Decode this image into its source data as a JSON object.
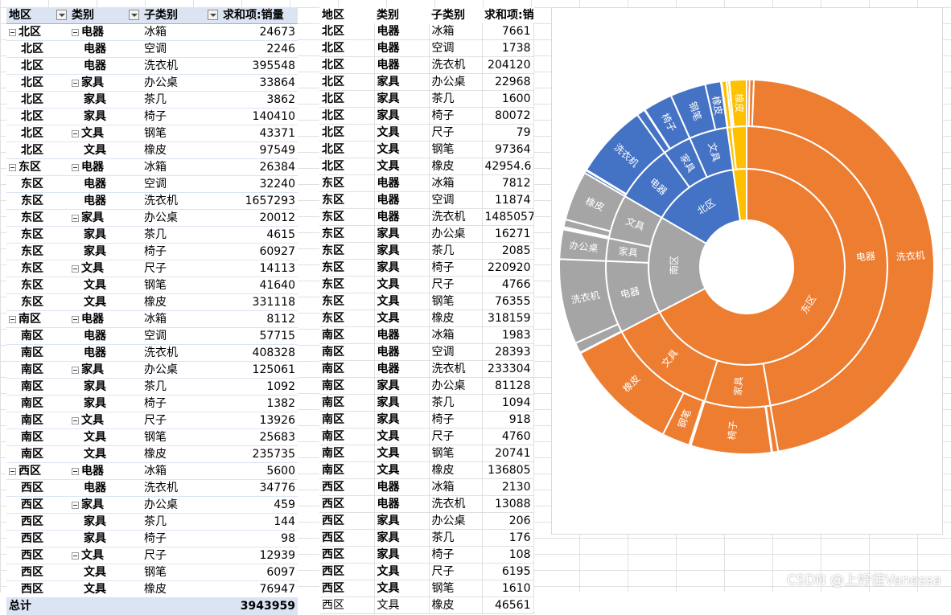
{
  "pivot": {
    "headers": [
      "地区",
      "类别",
      "子类别",
      "求和项:销量"
    ],
    "rows": [
      [
        "北区",
        "电器",
        "冰箱",
        "24673",
        1,
        1
      ],
      [
        "北区",
        "电器",
        "空调",
        "2246",
        0,
        0
      ],
      [
        "北区",
        "电器",
        "洗衣机",
        "395548",
        0,
        0
      ],
      [
        "北区",
        "家具",
        "办公桌",
        "33864",
        0,
        1
      ],
      [
        "北区",
        "家具",
        "茶几",
        "3862",
        0,
        0
      ],
      [
        "北区",
        "家具",
        "椅子",
        "140410",
        0,
        0
      ],
      [
        "北区",
        "文具",
        "钢笔",
        "43371",
        0,
        1
      ],
      [
        "北区",
        "文具",
        "橡皮",
        "97549",
        0,
        0
      ],
      [
        "东区",
        "电器",
        "冰箱",
        "26384",
        1,
        1
      ],
      [
        "东区",
        "电器",
        "空调",
        "32240",
        0,
        0
      ],
      [
        "东区",
        "电器",
        "洗衣机",
        "1657293",
        0,
        0
      ],
      [
        "东区",
        "家具",
        "办公桌",
        "20012",
        0,
        1
      ],
      [
        "东区",
        "家具",
        "茶几",
        "4615",
        0,
        0
      ],
      [
        "东区",
        "家具",
        "椅子",
        "60927",
        0,
        0
      ],
      [
        "东区",
        "文具",
        "尺子",
        "14113",
        0,
        1
      ],
      [
        "东区",
        "文具",
        "钢笔",
        "41640",
        0,
        0
      ],
      [
        "东区",
        "文具",
        "橡皮",
        "331118",
        0,
        0
      ],
      [
        "南区",
        "电器",
        "冰箱",
        "8112",
        1,
        1
      ],
      [
        "南区",
        "电器",
        "空调",
        "57715",
        0,
        0
      ],
      [
        "南区",
        "电器",
        "洗衣机",
        "408328",
        0,
        0
      ],
      [
        "南区",
        "家具",
        "办公桌",
        "125061",
        0,
        1
      ],
      [
        "南区",
        "家具",
        "茶几",
        "1092",
        0,
        0
      ],
      [
        "南区",
        "家具",
        "椅子",
        "1382",
        0,
        0
      ],
      [
        "南区",
        "文具",
        "尺子",
        "13926",
        0,
        1
      ],
      [
        "南区",
        "文具",
        "钢笔",
        "25683",
        0,
        0
      ],
      [
        "南区",
        "文具",
        "橡皮",
        "235735",
        0,
        0
      ],
      [
        "西区",
        "电器",
        "冰箱",
        "5600",
        1,
        1
      ],
      [
        "西区",
        "电器",
        "洗衣机",
        "34776",
        0,
        0
      ],
      [
        "西区",
        "家具",
        "办公桌",
        "459",
        0,
        1
      ],
      [
        "西区",
        "家具",
        "茶几",
        "144",
        0,
        0
      ],
      [
        "西区",
        "家具",
        "椅子",
        "98",
        0,
        0
      ],
      [
        "西区",
        "文具",
        "尺子",
        "12939",
        0,
        1
      ],
      [
        "西区",
        "文具",
        "钢笔",
        "6097",
        0,
        0
      ],
      [
        "西区",
        "文具",
        "橡皮",
        "76947",
        0,
        0
      ]
    ],
    "total_label": "总计",
    "total_value": "3943959"
  },
  "flat": {
    "headers": [
      "地区",
      "类别",
      "子类别",
      "求和项:销量"
    ],
    "rows": [
      [
        "北区",
        "电器",
        "冰箱",
        "7661"
      ],
      [
        "北区",
        "电器",
        "空调",
        "1738"
      ],
      [
        "北区",
        "电器",
        "洗衣机",
        "204120"
      ],
      [
        "北区",
        "家具",
        "办公桌",
        "22968"
      ],
      [
        "北区",
        "家具",
        "茶几",
        "1600"
      ],
      [
        "北区",
        "家具",
        "椅子",
        "80072"
      ],
      [
        "北区",
        "文具",
        "尺子",
        "79"
      ],
      [
        "北区",
        "文具",
        "钢笔",
        "97364"
      ],
      [
        "北区",
        "文具",
        "橡皮",
        "42954.6"
      ],
      [
        "东区",
        "电器",
        "冰箱",
        "7812"
      ],
      [
        "东区",
        "电器",
        "空调",
        "11874"
      ],
      [
        "东区",
        "电器",
        "洗衣机",
        "1485057"
      ],
      [
        "东区",
        "家具",
        "办公桌",
        "16271"
      ],
      [
        "东区",
        "家具",
        "茶几",
        "2085"
      ],
      [
        "东区",
        "家具",
        "椅子",
        "220920"
      ],
      [
        "东区",
        "文具",
        "尺子",
        "4766"
      ],
      [
        "东区",
        "文具",
        "钢笔",
        "76355"
      ],
      [
        "东区",
        "文具",
        "橡皮",
        "318159"
      ],
      [
        "南区",
        "电器",
        "冰箱",
        "1983"
      ],
      [
        "南区",
        "电器",
        "空调",
        "28393"
      ],
      [
        "南区",
        "电器",
        "洗衣机",
        "233304"
      ],
      [
        "南区",
        "家具",
        "办公桌",
        "81128"
      ],
      [
        "南区",
        "家具",
        "茶几",
        "1094"
      ],
      [
        "南区",
        "家具",
        "椅子",
        "918"
      ],
      [
        "南区",
        "文具",
        "尺子",
        "4760"
      ],
      [
        "南区",
        "文具",
        "钢笔",
        "20741"
      ],
      [
        "南区",
        "文具",
        "橡皮",
        "136805"
      ],
      [
        "西区",
        "电器",
        "冰箱",
        "2130"
      ],
      [
        "西区",
        "电器",
        "洗衣机",
        "13088"
      ],
      [
        "西区",
        "家具",
        "办公桌",
        "206"
      ],
      [
        "西区",
        "家具",
        "茶几",
        "176"
      ],
      [
        "西区",
        "家具",
        "椅子",
        "108"
      ],
      [
        "西区",
        "文具",
        "尺子",
        "6195"
      ],
      [
        "西区",
        "文具",
        "钢笔",
        "1610"
      ],
      [
        "西区",
        "文具",
        "橡皮",
        "46561"
      ]
    ]
  },
  "chart_data": {
    "type": "sunburst",
    "colors": {
      "东区": "#ed7d31",
      "南区": "#a5a5a5",
      "北区": "#4472c4",
      "西区": "#ffc000"
    },
    "tree": [
      {
        "name": "东区",
        "children": [
          {
            "name": "电器",
            "children": [
              {
                "name": "冰箱",
                "value": 7812
              },
              {
                "name": "空调",
                "value": 11874
              },
              {
                "name": "洗衣机",
                "value": 1485057
              }
            ]
          },
          {
            "name": "家具",
            "children": [
              {
                "name": "办公桌",
                "value": 16271
              },
              {
                "name": "茶几",
                "value": 2085
              },
              {
                "name": "椅子",
                "value": 220920
              }
            ]
          },
          {
            "name": "文具",
            "children": [
              {
                "name": "尺子",
                "value": 4766
              },
              {
                "name": "钢笔",
                "value": 76355
              },
              {
                "name": "橡皮",
                "value": 318159
              }
            ]
          }
        ]
      },
      {
        "name": "南区",
        "children": [
          {
            "name": "电器",
            "children": [
              {
                "name": "冰箱",
                "value": 1983
              },
              {
                "name": "空调",
                "value": 28393
              },
              {
                "name": "洗衣机",
                "value": 233304
              }
            ]
          },
          {
            "name": "家具",
            "children": [
              {
                "name": "办公桌",
                "value": 81128
              },
              {
                "name": "茶几",
                "value": 1094
              },
              {
                "name": "椅子",
                "value": 918
              }
            ]
          },
          {
            "name": "文具",
            "children": [
              {
                "name": "尺子",
                "value": 4760
              },
              {
                "name": "钢笔",
                "value": 20741
              },
              {
                "name": "橡皮",
                "value": 136805
              }
            ]
          }
        ]
      },
      {
        "name": "北区",
        "children": [
          {
            "name": "电器",
            "children": [
              {
                "name": "冰箱",
                "value": 7661
              },
              {
                "name": "空调",
                "value": 1738
              },
              {
                "name": "洗衣机",
                "value": 204120
              }
            ]
          },
          {
            "name": "家具",
            "children": [
              {
                "name": "办公桌",
                "value": 22968
              },
              {
                "name": "茶几",
                "value": 1600
              },
              {
                "name": "椅子",
                "value": 80072
              }
            ]
          },
          {
            "name": "文具",
            "children": [
              {
                "name": "尺子",
                "value": 79
              },
              {
                "name": "钢笔",
                "value": 97364
              },
              {
                "name": "橡皮",
                "value": 42954.6
              }
            ]
          }
        ]
      },
      {
        "name": "西区",
        "children": [
          {
            "name": "电器",
            "children": [
              {
                "name": "冰箱",
                "value": 2130
              },
              {
                "name": "洗衣机",
                "value": 13088
              }
            ]
          },
          {
            "name": "家具",
            "children": [
              {
                "name": "办公桌",
                "value": 206
              },
              {
                "name": "茶几",
                "value": 176
              },
              {
                "name": "椅子",
                "value": 108
              }
            ]
          },
          {
            "name": "文具",
            "children": [
              {
                "name": "尺子",
                "value": 6195
              },
              {
                "name": "钢笔",
                "value": 1610
              },
              {
                "name": "橡皮",
                "value": 46561
              }
            ]
          }
        ]
      }
    ]
  },
  "watermark": "CSDN @上好佳Vanessa"
}
